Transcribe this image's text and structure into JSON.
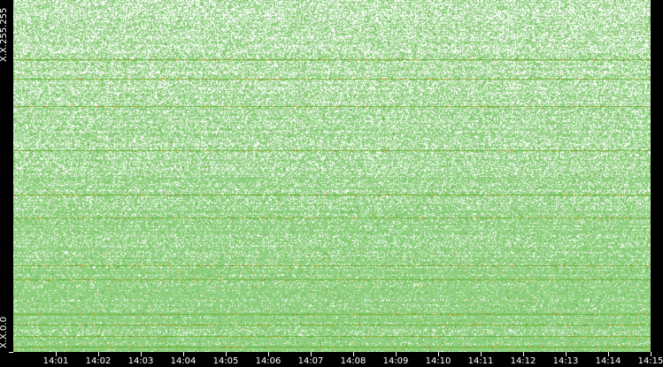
{
  "chart_data": {
    "type": "heatmap",
    "title": "",
    "y_labels": {
      "top": "X.X.255.255",
      "bottom": "X.X.0.0"
    },
    "x_tick_labels": [
      "14:01",
      "14:02",
      "14:03",
      "14:04",
      "14:05",
      "14:06",
      "14:07",
      "14:08",
      "14:09",
      "14:10",
      "14:11",
      "14:12",
      "14:13",
      "14:14",
      "14:15"
    ],
    "x_range": [
      "14:00",
      "14:15"
    ],
    "colors": {
      "background": "#000000",
      "empty": "#ffffff",
      "low": "#8fcf80",
      "medium": "#5cb030",
      "high": "#f0a020",
      "peak": "#e02020"
    }
  }
}
